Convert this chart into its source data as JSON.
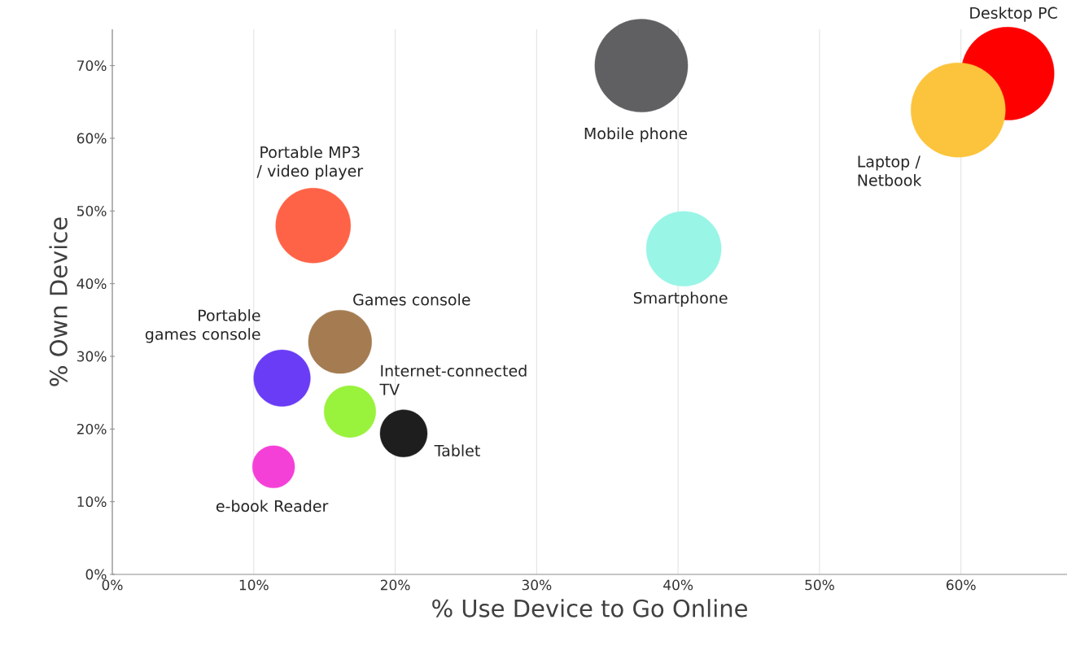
{
  "chart_data": {
    "type": "bubble",
    "xlabel": "% Use Device to Go Online",
    "ylabel": "% Own Device",
    "xlim": [
      0,
      67.5
    ],
    "ylim": [
      0,
      75
    ],
    "xticks": [
      {
        "value": 0,
        "label": "0%"
      },
      {
        "value": 10,
        "label": "10%"
      },
      {
        "value": 20,
        "label": "20%"
      },
      {
        "value": 30,
        "label": "30%"
      },
      {
        "value": 40,
        "label": "40%"
      },
      {
        "value": 50,
        "label": "50%"
      },
      {
        "value": 60,
        "label": "60%"
      }
    ],
    "yticks": [
      {
        "value": 0,
        "label": "0%"
      },
      {
        "value": 10,
        "label": "10%"
      },
      {
        "value": 20,
        "label": "20%"
      },
      {
        "value": 30,
        "label": "30%"
      },
      {
        "value": 40,
        "label": "40%"
      },
      {
        "value": 50,
        "label": "50%"
      },
      {
        "value": 60,
        "label": "60%"
      },
      {
        "value": 70,
        "label": "70%"
      }
    ],
    "grid": "x",
    "series": [
      {
        "name": "Desktop PC",
        "color": "#ff0000",
        "x": [
          63.3
        ],
        "values": [
          68.9
        ],
        "sizes": [
          0.97
        ]
      },
      {
        "name": "Laptop / Netbook",
        "color": "#fcc43c",
        "x": [
          59.8
        ],
        "values": [
          63.9
        ],
        "sizes": [
          1
        ]
      },
      {
        "name": "Mobile phone",
        "color": "#606062",
        "x": [
          37.4
        ],
        "values": [
          70.0
        ],
        "sizes": [
          0.97
        ]
      },
      {
        "name": "Smartphone",
        "color": "#99f5e6",
        "x": [
          40.4
        ],
        "values": [
          44.8
        ],
        "sizes": [
          0.63
        ]
      },
      {
        "name": "Portable MP3 / video player",
        "color": "#ff6347",
        "x": [
          14.2
        ],
        "values": [
          48.0
        ],
        "sizes": [
          0.63
        ]
      },
      {
        "name": "Games console",
        "color": "#a57c52",
        "x": [
          16.1
        ],
        "values": [
          32.0
        ],
        "sizes": [
          0.45
        ]
      },
      {
        "name": "Portable games console",
        "color": "#6a3cf5",
        "x": [
          12.0
        ],
        "values": [
          27.0
        ],
        "sizes": [
          0.36
        ]
      },
      {
        "name": "Internet-connected TV",
        "color": "#99f23c",
        "x": [
          16.8
        ],
        "values": [
          22.4
        ],
        "sizes": [
          0.3
        ]
      },
      {
        "name": "Tablet",
        "color": "#1e1e1e",
        "x": [
          20.6
        ],
        "values": [
          19.4
        ],
        "sizes": [
          0.25
        ]
      },
      {
        "name": "e-book Reader",
        "color": "#f540d8",
        "x": [
          11.4
        ],
        "values": [
          14.8
        ],
        "sizes": [
          0.2
        ]
      }
    ]
  }
}
